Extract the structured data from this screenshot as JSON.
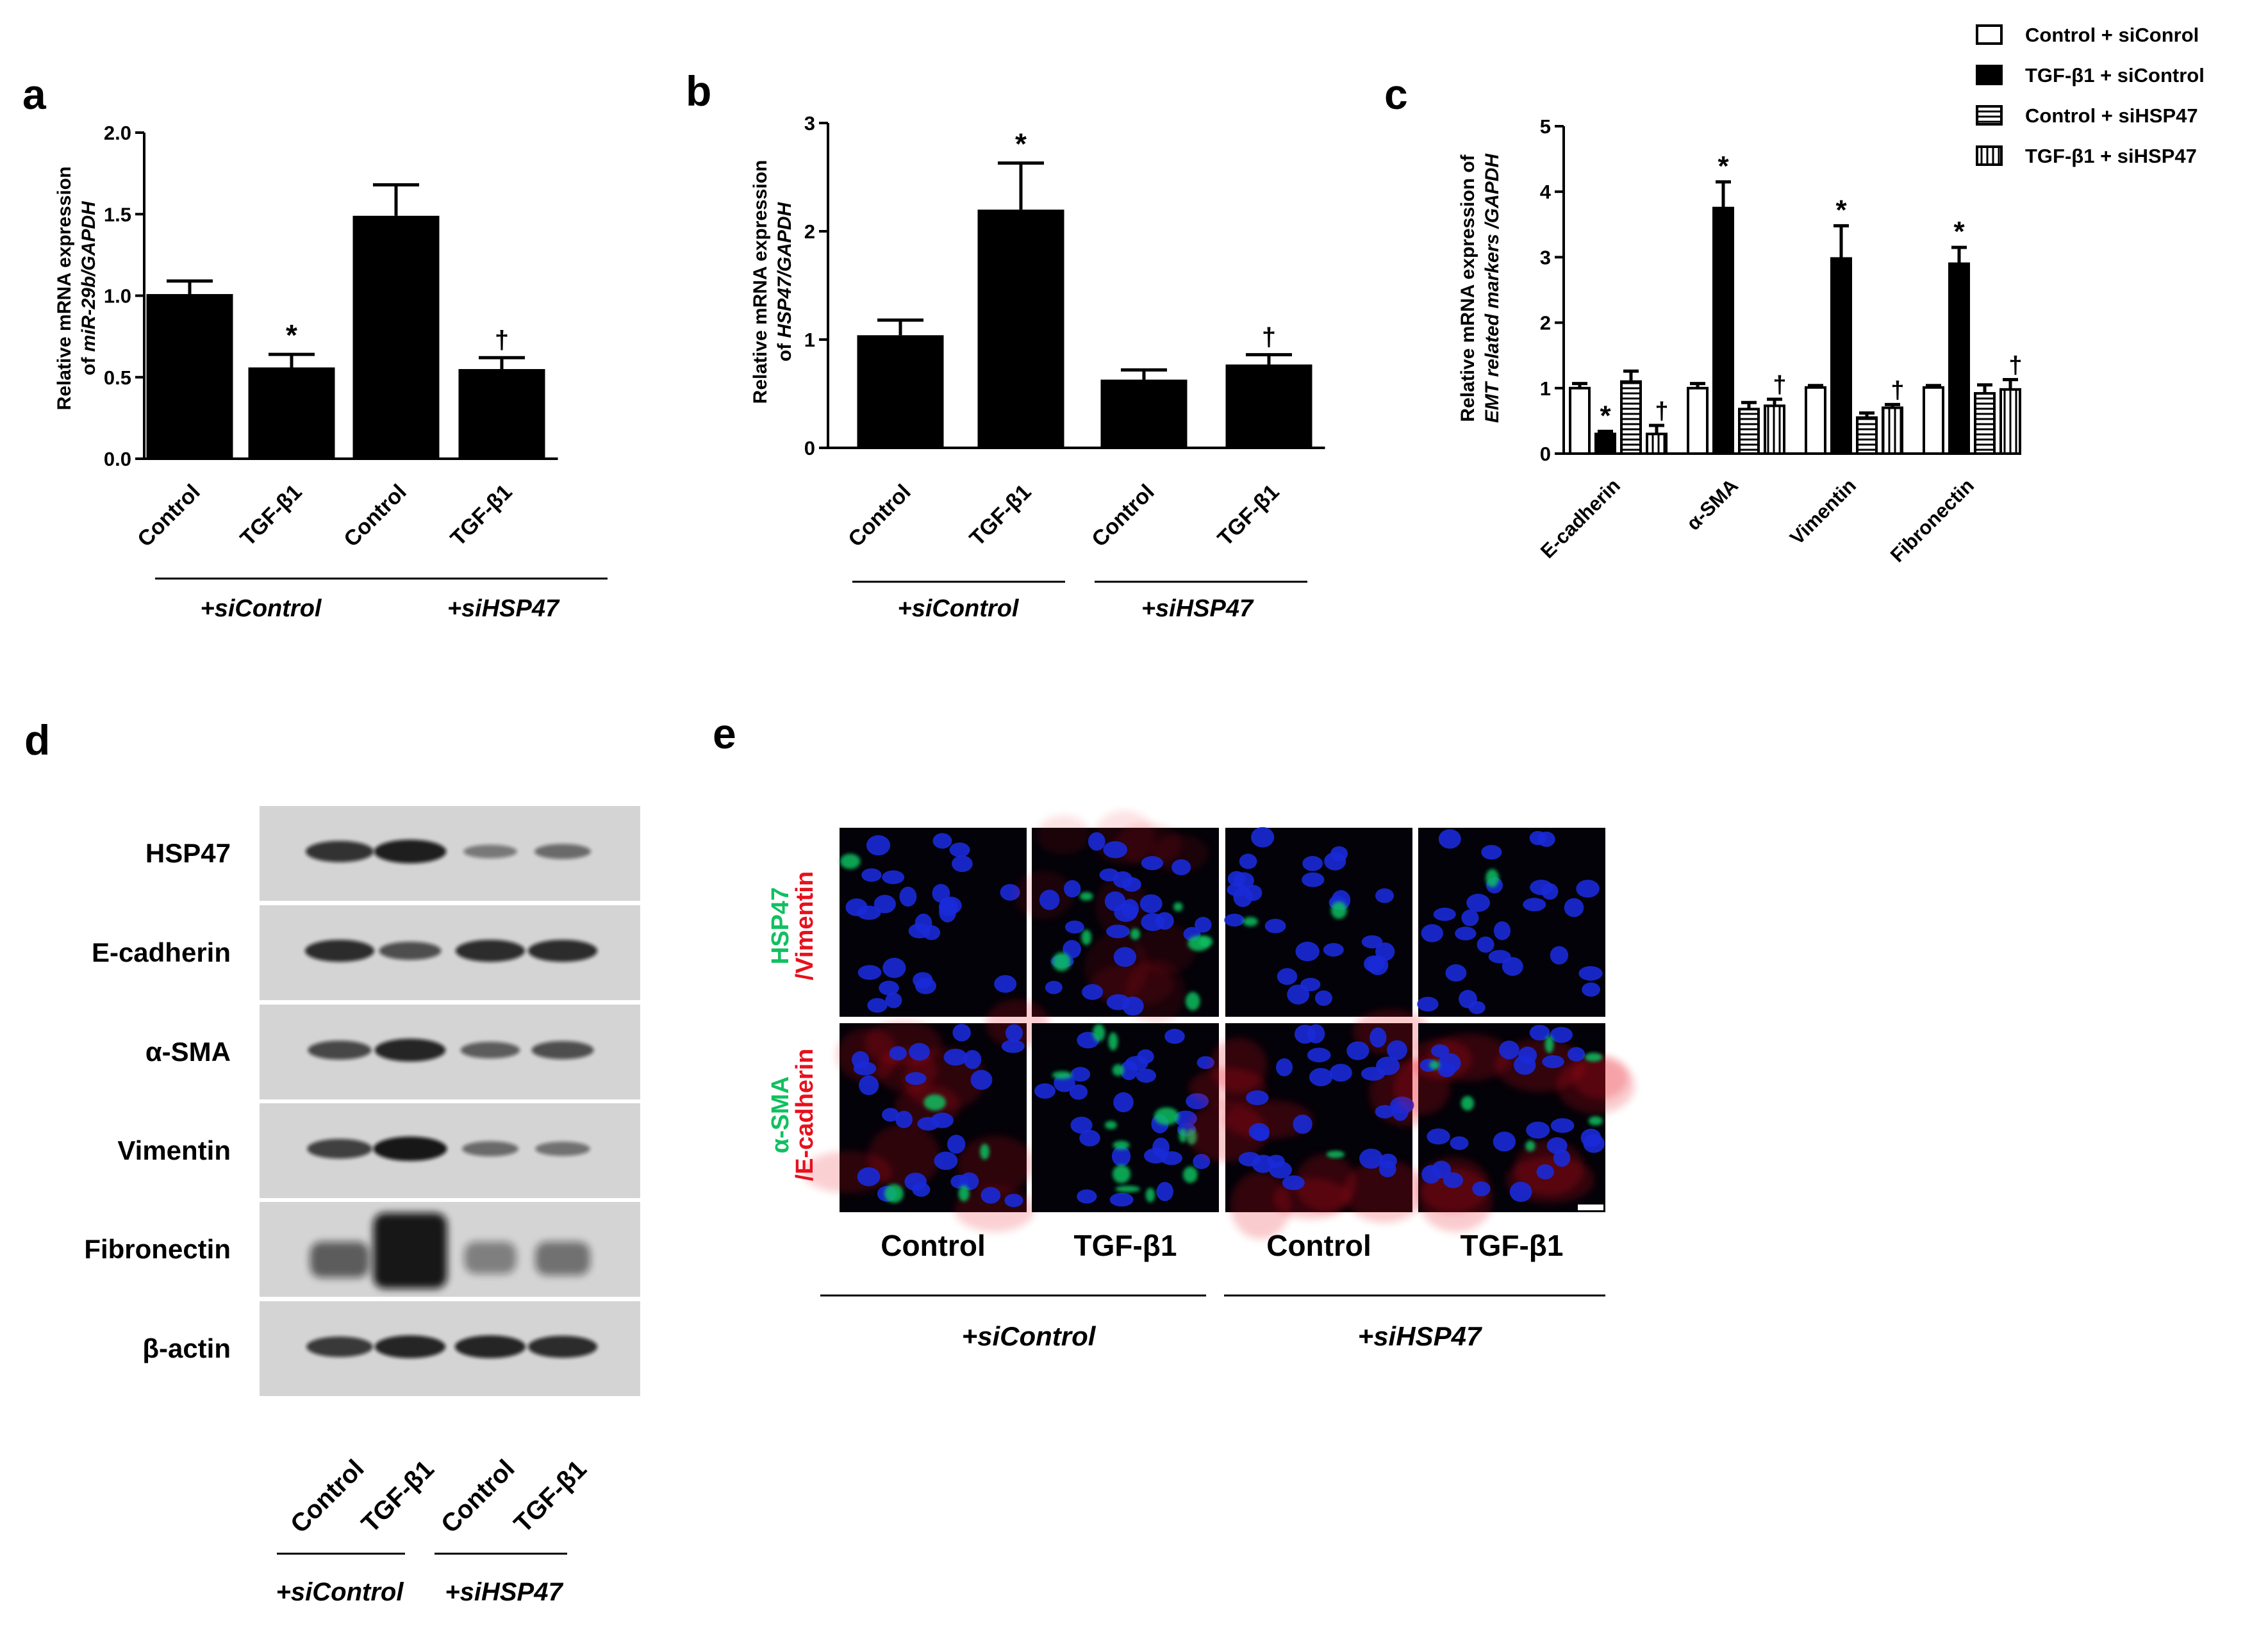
{
  "figure": {
    "group_labels": [
      "+siControl",
      "+siHSP47"
    ],
    "condition_labels": [
      "Control",
      "TGF-β1",
      "Control",
      "TGF-β1"
    ]
  },
  "panel_a": {
    "letter": "a"
  },
  "panel_b": {
    "letter": "b"
  },
  "panel_c": {
    "letter": "c",
    "legend": [
      "Control + siConrol",
      "TGF-β1 + siControl",
      "Control + siHSP47",
      "TGF-β1 + siHSP47"
    ]
  },
  "panel_d": {
    "letter": "d",
    "rows": [
      "HSP47",
      "E-cadherin",
      "α-SMA",
      "Vimentin",
      "Fibronectin",
      "β-actin"
    ],
    "band_intensity_levels": [
      [
        0.8,
        0.95,
        0.3,
        0.4
      ],
      [
        0.85,
        0.6,
        0.85,
        0.85
      ],
      [
        0.65,
        0.9,
        0.5,
        0.6
      ],
      [
        0.7,
        1.0,
        0.4,
        0.35
      ],
      [
        0.5,
        1.0,
        0.25,
        0.35
      ],
      [
        0.75,
        0.9,
        0.9,
        0.85
      ]
    ]
  },
  "panel_e": {
    "letter": "e",
    "row_labels": [
      {
        "green": "HSP47",
        "red": "/Vimentin"
      },
      {
        "green": "α-SMA",
        "red": "/E-cadherin"
      }
    ],
    "colors": {
      "green": "#10c060",
      "red": "#e8101c",
      "nuclei": "#1a2ad8"
    }
  },
  "chart_data": [
    {
      "panel": "a",
      "type": "bar",
      "categories": [
        "Control",
        "TGF-β1",
        "Control",
        "TGF-β1"
      ],
      "groups": [
        "+siControl",
        "+siHSP47"
      ],
      "values": [
        1.01,
        0.56,
        1.49,
        0.55
      ],
      "errors": [
        0.08,
        0.08,
        0.19,
        0.07
      ],
      "significance": [
        "",
        "*",
        "",
        "†"
      ],
      "ylabel_line1": "Relative mRNA expression",
      "ylabel_line2_prefix": "of ",
      "ylabel_line2_italic": "miR-29b/GAPDH",
      "ylim": [
        0,
        2.0
      ],
      "yticks": [
        "0.0",
        "0.5",
        "1.0",
        "1.5",
        "2.0"
      ]
    },
    {
      "panel": "b",
      "type": "bar",
      "categories": [
        "Control",
        "TGF-β1",
        "Control",
        "TGF-β1"
      ],
      "groups": [
        "+siControl",
        "+siHSP47"
      ],
      "values": [
        1.04,
        2.2,
        0.63,
        0.77
      ],
      "errors": [
        0.14,
        0.43,
        0.09,
        0.09
      ],
      "significance": [
        "",
        "*",
        "",
        "†"
      ],
      "ylabel_line1": "Relative mRNA expression",
      "ylabel_line2_prefix": "of ",
      "ylabel_line2_italic": "HSP47/GAPDH",
      "ylim": [
        0,
        3
      ],
      "yticks": [
        "0",
        "1",
        "2",
        "3"
      ]
    },
    {
      "panel": "c",
      "type": "bar",
      "categories": [
        "E-cadherin",
        "α-SMA",
        "Vimentin",
        "Fibronectin"
      ],
      "series": [
        {
          "name": "Control + siConrol",
          "values": [
            1.0,
            1.0,
            1.01,
            1.01
          ],
          "errors": [
            0.07,
            0.07,
            0.03,
            0.03
          ],
          "significance": [
            "",
            "",
            "",
            ""
          ]
        },
        {
          "name": "TGF-β1 + siControl",
          "values": [
            0.3,
            3.75,
            2.98,
            2.9
          ],
          "errors": [
            0.04,
            0.4,
            0.5,
            0.25
          ],
          "significance": [
            "*",
            "*",
            "*",
            "*"
          ]
        },
        {
          "name": "Control + siHSP47",
          "values": [
            1.1,
            0.68,
            0.55,
            0.92
          ],
          "errors": [
            0.16,
            0.1,
            0.07,
            0.13
          ],
          "significance": [
            "",
            "",
            "",
            ""
          ]
        },
        {
          "name": "TGF-β1 + siHSP47",
          "values": [
            0.3,
            0.73,
            0.7,
            0.98
          ],
          "errors": [
            0.13,
            0.1,
            0.05,
            0.15
          ],
          "significance": [
            "†",
            "†",
            "†",
            "†"
          ]
        }
      ],
      "ylabel_line1": "Relative mRNA expression of",
      "ylabel_line2_italic": "EMT related markers /GAPDH",
      "ylim": [
        0,
        5
      ],
      "yticks": [
        "0",
        "1",
        "2",
        "3",
        "4",
        "5"
      ],
      "legend_position": "top-right"
    }
  ]
}
